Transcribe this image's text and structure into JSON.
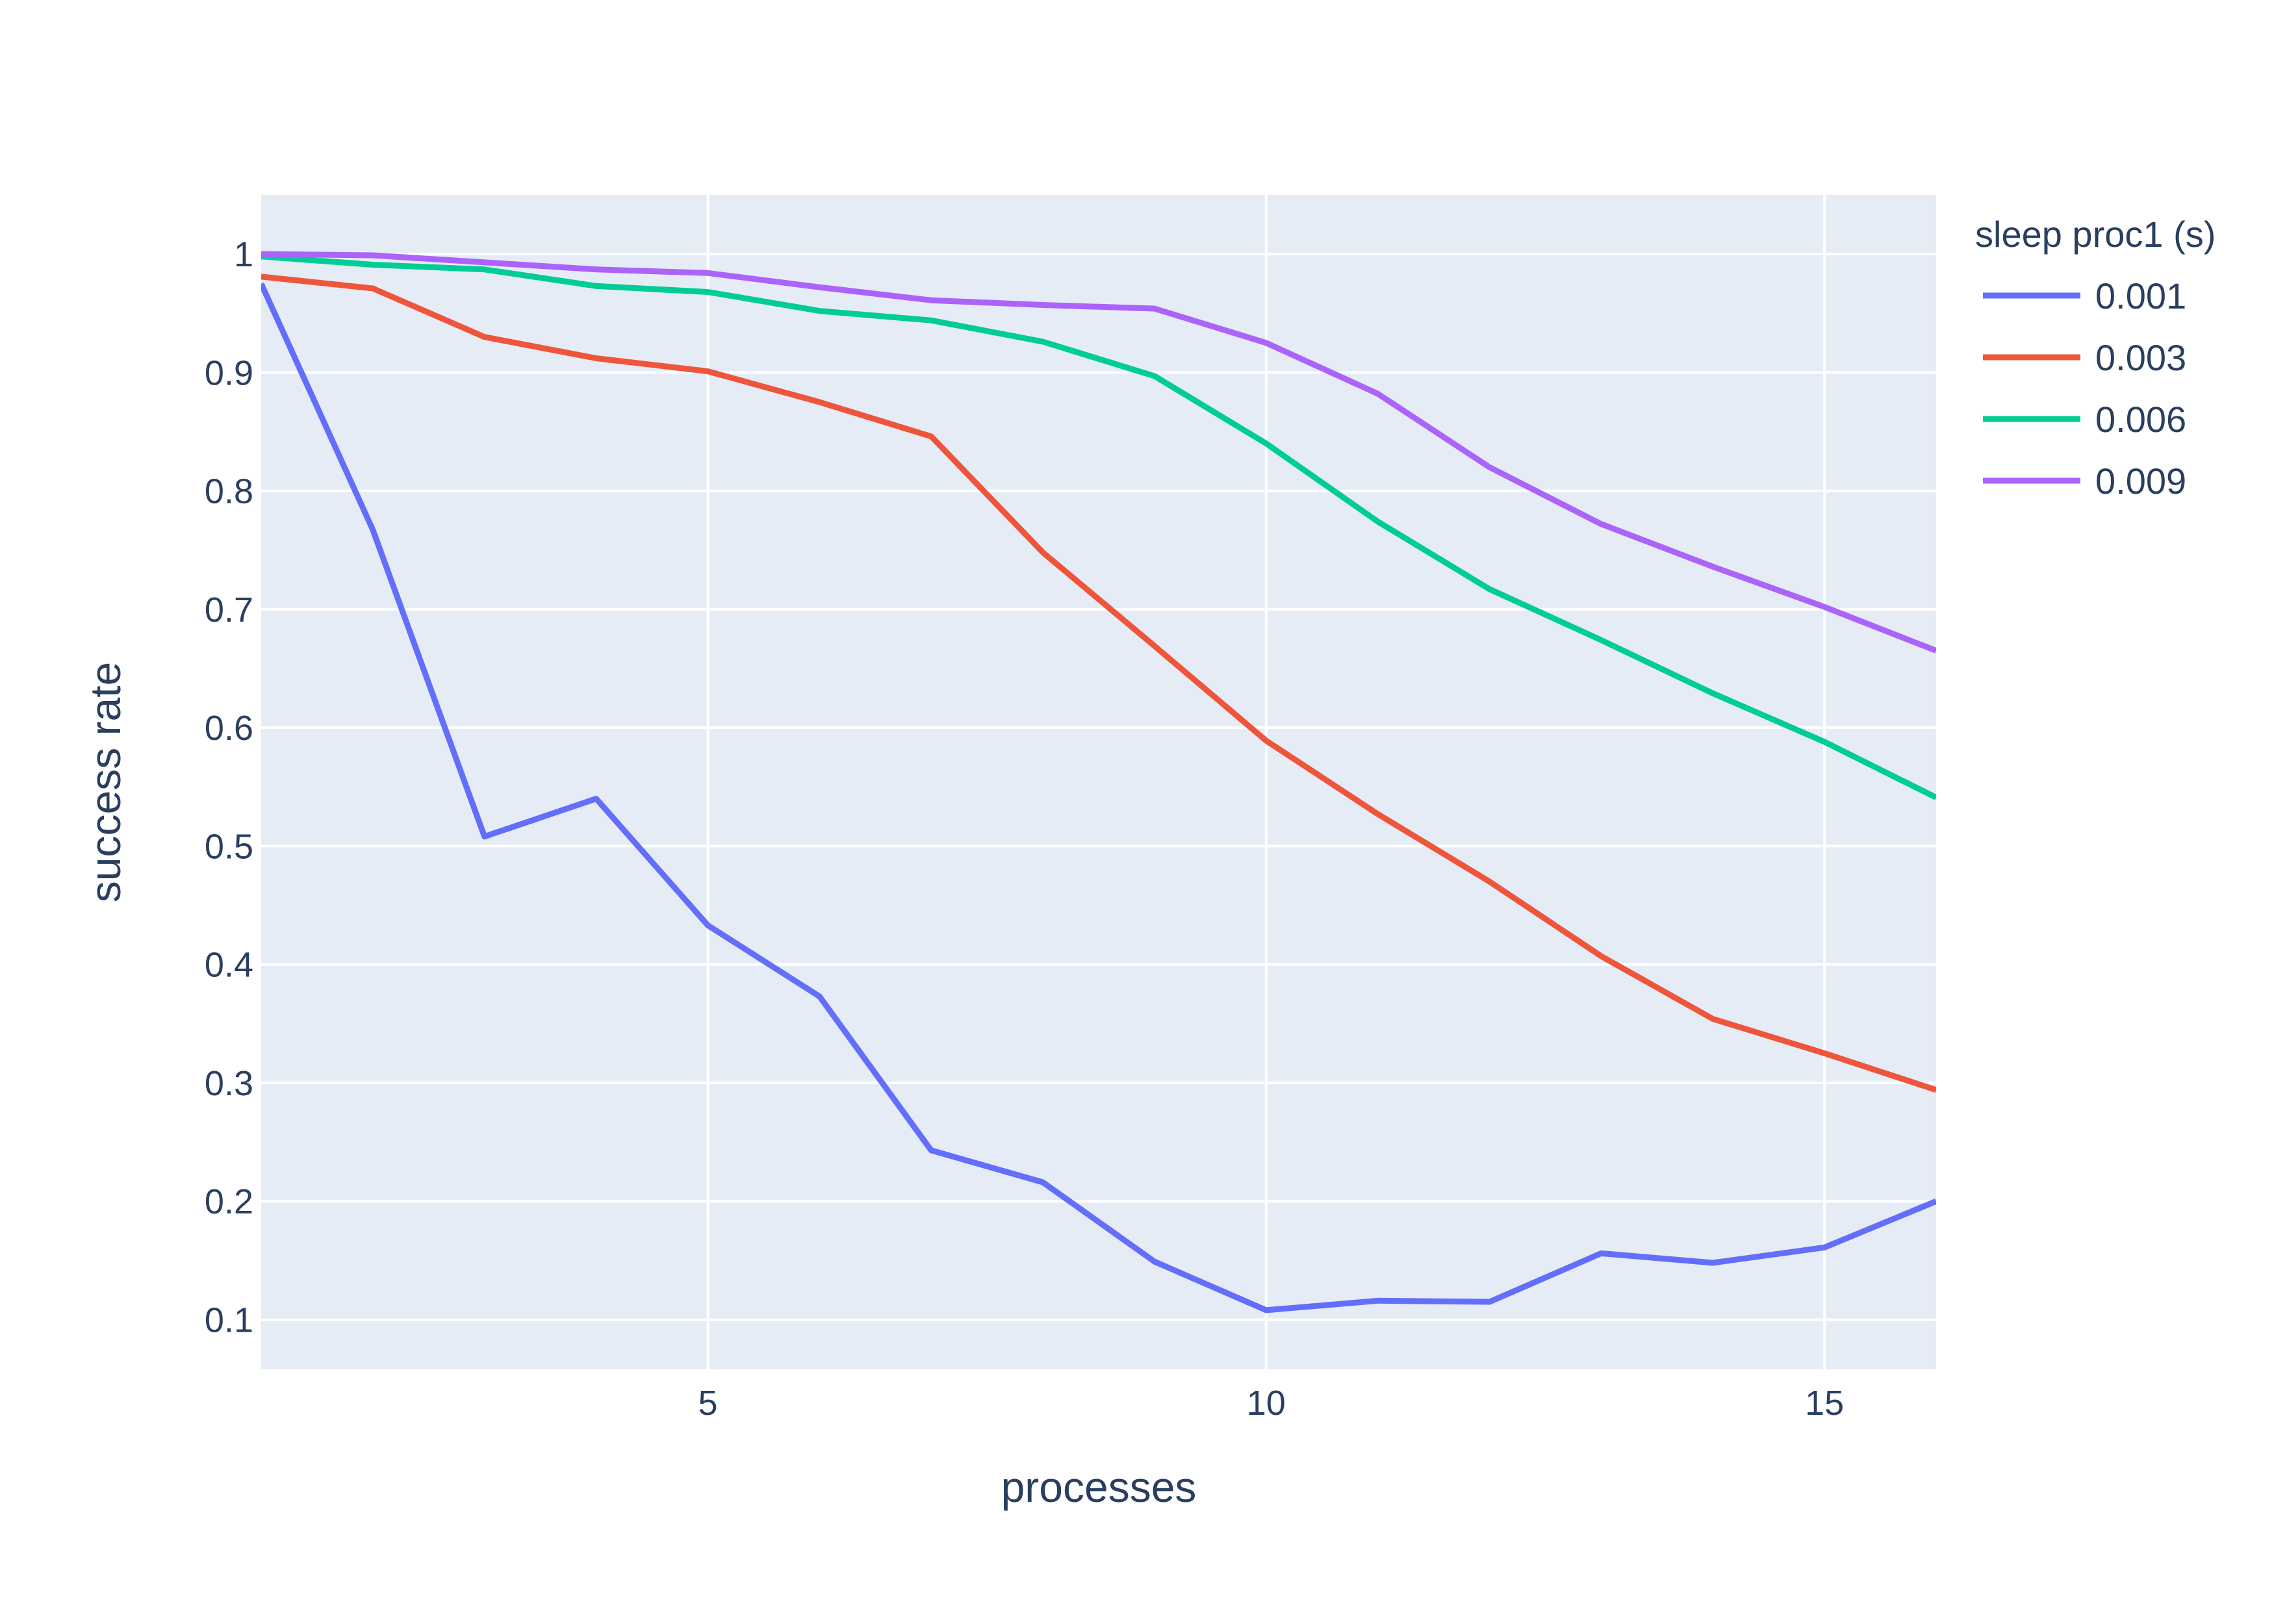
{
  "chart_data": {
    "type": "line",
    "title": "",
    "xlabel": "processes",
    "ylabel": "success rate",
    "xlim": [
      1,
      16
    ],
    "ylim": [
      0.058,
      1.05
    ],
    "xticks": [
      5,
      10,
      15
    ],
    "yticks": [
      0.1,
      0.2,
      0.3,
      0.4,
      0.5,
      0.6,
      0.7,
      0.8,
      0.9,
      1
    ],
    "grid": true,
    "legend_placement": "top-right",
    "legend_title": "sleep proc1 (s)",
    "x": [
      1,
      2,
      3,
      4,
      5,
      6,
      7,
      8,
      9,
      10,
      11,
      12,
      13,
      14,
      15,
      16
    ],
    "series": [
      {
        "name": "0.001",
        "color": "#636efa",
        "values": [
          0.975,
          0.767,
          0.508,
          0.54,
          0.433,
          0.373,
          0.243,
          0.216,
          0.149,
          0.108,
          0.116,
          0.115,
          0.156,
          0.148,
          0.161,
          0.2
        ]
      },
      {
        "name": "0.003",
        "color": "#ef553b",
        "values": [
          0.981,
          0.971,
          0.93,
          0.912,
          0.901,
          0.875,
          0.846,
          0.748,
          0.669,
          0.589,
          0.527,
          0.47,
          0.407,
          0.354,
          0.325,
          0.294
        ]
      },
      {
        "name": "0.006",
        "color": "#00cc96",
        "values": [
          0.998,
          0.991,
          0.987,
          0.973,
          0.968,
          0.952,
          0.944,
          0.926,
          0.897,
          0.84,
          0.774,
          0.717,
          0.674,
          0.629,
          0.588,
          0.541
        ]
      },
      {
        "name": "0.009",
        "color": "#ab63fa",
        "values": [
          1.0,
          0.999,
          0.993,
          0.987,
          0.984,
          0.972,
          0.961,
          0.957,
          0.954,
          0.925,
          0.882,
          0.82,
          0.772,
          0.736,
          0.702,
          0.665
        ]
      }
    ]
  }
}
